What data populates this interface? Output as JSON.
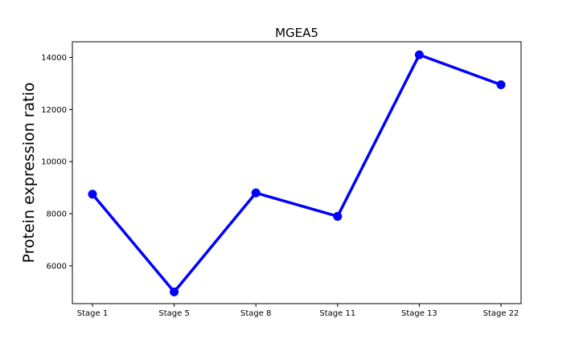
{
  "chart_data": {
    "type": "line",
    "title": "MGEA5",
    "xlabel": "",
    "ylabel": "Protein expression ratio",
    "categories": [
      "Stage 1",
      "Stage 5",
      "Stage 8",
      "Stage 11",
      "Stage 13",
      "Stage 22"
    ],
    "series": [
      {
        "values": [
          8750,
          5000,
          8800,
          7900,
          14100,
          12950
        ],
        "color": "#0000ff"
      }
    ],
    "ylim": [
      4550,
      14600
    ],
    "yticks": [
      6000,
      8000,
      10000,
      12000,
      14000
    ],
    "ytick_labels": [
      "6000",
      "8000",
      "10000",
      "12000",
      "14000"
    ],
    "grid": false,
    "legend": "none"
  }
}
